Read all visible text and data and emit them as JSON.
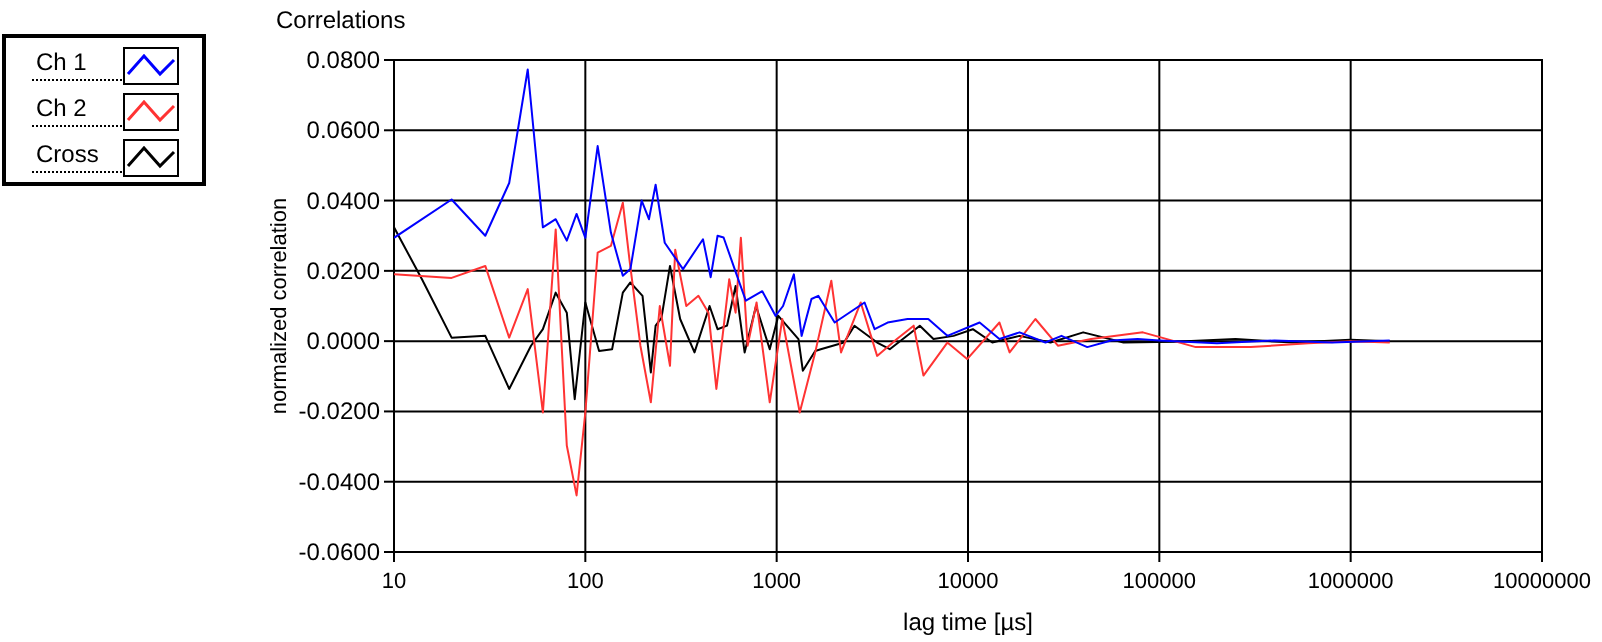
{
  "chart_data": {
    "type": "line",
    "title": "Correlations",
    "xlabel": "lag time [µs]",
    "ylabel": "normalized correlation",
    "log": "x",
    "grid": true,
    "legend": "top left",
    "marker": "none",
    "line_style": "solid",
    "xlim": [
      10,
      10000000
    ],
    "xticks": [
      10,
      100,
      1000,
      10000,
      100000,
      1000000,
      10000000
    ],
    "ylim": [
      -0.06,
      0.08
    ],
    "yticks": [
      {
        "value": -0.06,
        "label": "-0.0600"
      },
      {
        "value": -0.04,
        "label": "-0.0400"
      },
      {
        "value": -0.02,
        "label": "-0.0200"
      },
      {
        "value": 0,
        "label": "0.0000"
      },
      {
        "value": 0.02,
        "label": "0.0200"
      },
      {
        "value": 0.04,
        "label": "0.0400"
      },
      {
        "value": 0.06,
        "label": "0.0600"
      },
      {
        "value": 0.08,
        "label": "0.0800"
      }
    ],
    "series": [
      {
        "name": "Ch 1",
        "color": "#0000ff",
        "x": [
          10,
          20,
          30,
          40,
          50,
          60,
          70,
          80,
          90,
          100,
          116,
          136,
          157,
          172,
          197,
          215,
          233,
          260,
          324,
          412,
          452,
          491,
          528,
          638,
          690,
          841,
          986,
          1080,
          1230,
          1350,
          1520,
          1650,
          2010,
          2880,
          3250,
          3800,
          4830,
          6200,
          7800,
          11500,
          14600,
          18600,
          25400,
          30800,
          42000,
          56000,
          77000,
          100000,
          200000,
          400000,
          800000,
          1600000
        ],
        "values": [
          0.0294,
          0.0403,
          0.03,
          0.045,
          0.0773,
          0.0324,
          0.0347,
          0.0286,
          0.0362,
          0.0294,
          0.0555,
          0.0309,
          0.0186,
          0.0205,
          0.04,
          0.0347,
          0.0445,
          0.028,
          0.0205,
          0.029,
          0.0182,
          0.03,
          0.0295,
          0.0167,
          0.0115,
          0.0142,
          0.0072,
          0.01,
          0.019,
          0.0015,
          0.012,
          0.0129,
          0.0053,
          0.011,
          0.0034,
          0.0053,
          0.0063,
          0.0063,
          0.0015,
          0.0053,
          0.0006,
          0.0025,
          -0.0004,
          0.0015,
          -0.0017,
          0.0002,
          0.0006,
          0.0002,
          -0.0006,
          0.0002,
          -0.0004,
          0.0002
        ]
      },
      {
        "name": "Ch 2",
        "color": "#ff3333",
        "x": [
          10,
          20,
          30,
          40,
          50,
          60,
          70,
          80,
          90,
          100,
          116,
          136,
          157,
          170,
          194,
          220,
          245,
          277,
          295,
          337,
          390,
          440,
          484,
          565,
          610,
          650,
          705,
          785,
          920,
          1070,
          1320,
          1590,
          1930,
          2170,
          2750,
          3350,
          4250,
          5200,
          5850,
          7800,
          9900,
          14600,
          16500,
          22500,
          29500,
          44000,
          82000,
          155000,
          300000,
          600000,
          1000000,
          1600000
        ],
        "values": [
          0.019,
          0.018,
          0.0214,
          0.001,
          0.0148,
          -0.0203,
          0.0318,
          -0.0297,
          -0.0439,
          -0.0203,
          0.0252,
          0.0271,
          0.0394,
          0.0233,
          -0.0013,
          -0.0174,
          0.01,
          -0.007,
          0.026,
          0.01,
          0.0129,
          0.0081,
          -0.0136,
          0.0176,
          0.0081,
          0.0294,
          -0.0013,
          0.011,
          -0.0174,
          0.0063,
          -0.0203,
          -0.0032,
          0.0172,
          -0.0032,
          0.011,
          -0.0042,
          0.0006,
          0.0044,
          -0.0098,
          -0.0004,
          -0.0051,
          0.0053,
          -0.0032,
          0.0063,
          -0.0013,
          0.0006,
          0.0025,
          -0.0017,
          -0.0017,
          -0.0006,
          0,
          -0.0004
        ]
      },
      {
        "name": "Cross",
        "color": "#000000",
        "x": [
          10,
          14,
          20,
          30,
          40,
          52,
          60,
          70,
          80,
          88,
          100,
          118,
          138,
          157,
          172,
          199,
          220,
          233,
          250,
          277,
          313,
          372,
          446,
          491,
          550,
          610,
          680,
          780,
          920,
          1020,
          1300,
          1370,
          1590,
          1700,
          2250,
          2550,
          3350,
          3900,
          5600,
          6600,
          8400,
          10600,
          13400,
          18600,
          27000,
          40000,
          65000,
          120000,
          250000,
          500000,
          1000000,
          1600000
        ],
        "values": [
          0.0324,
          0.0176,
          0.001,
          0.0015,
          -0.0136,
          -0.0013,
          0.0034,
          0.0138,
          0.0081,
          -0.0165,
          0.011,
          -0.0028,
          -0.0023,
          0.0138,
          0.0167,
          0.0129,
          -0.0089,
          0.0044,
          0.0066,
          0.0214,
          0.0063,
          -0.0032,
          0.01,
          0.0034,
          0.0044,
          0.0157,
          -0.0032,
          0.01,
          -0.0023,
          0.0072,
          0.0006,
          -0.0084,
          -0.0028,
          -0.0023,
          -0.0004,
          0.0044,
          -0.0004,
          -0.0023,
          0.0044,
          0.0006,
          0.0015,
          0.0034,
          -0.0004,
          0.0015,
          -0.0004,
          0.0025,
          -0.0004,
          -0.0002,
          0.0006,
          -0.0004,
          0.0004,
          0
        ]
      }
    ]
  }
}
